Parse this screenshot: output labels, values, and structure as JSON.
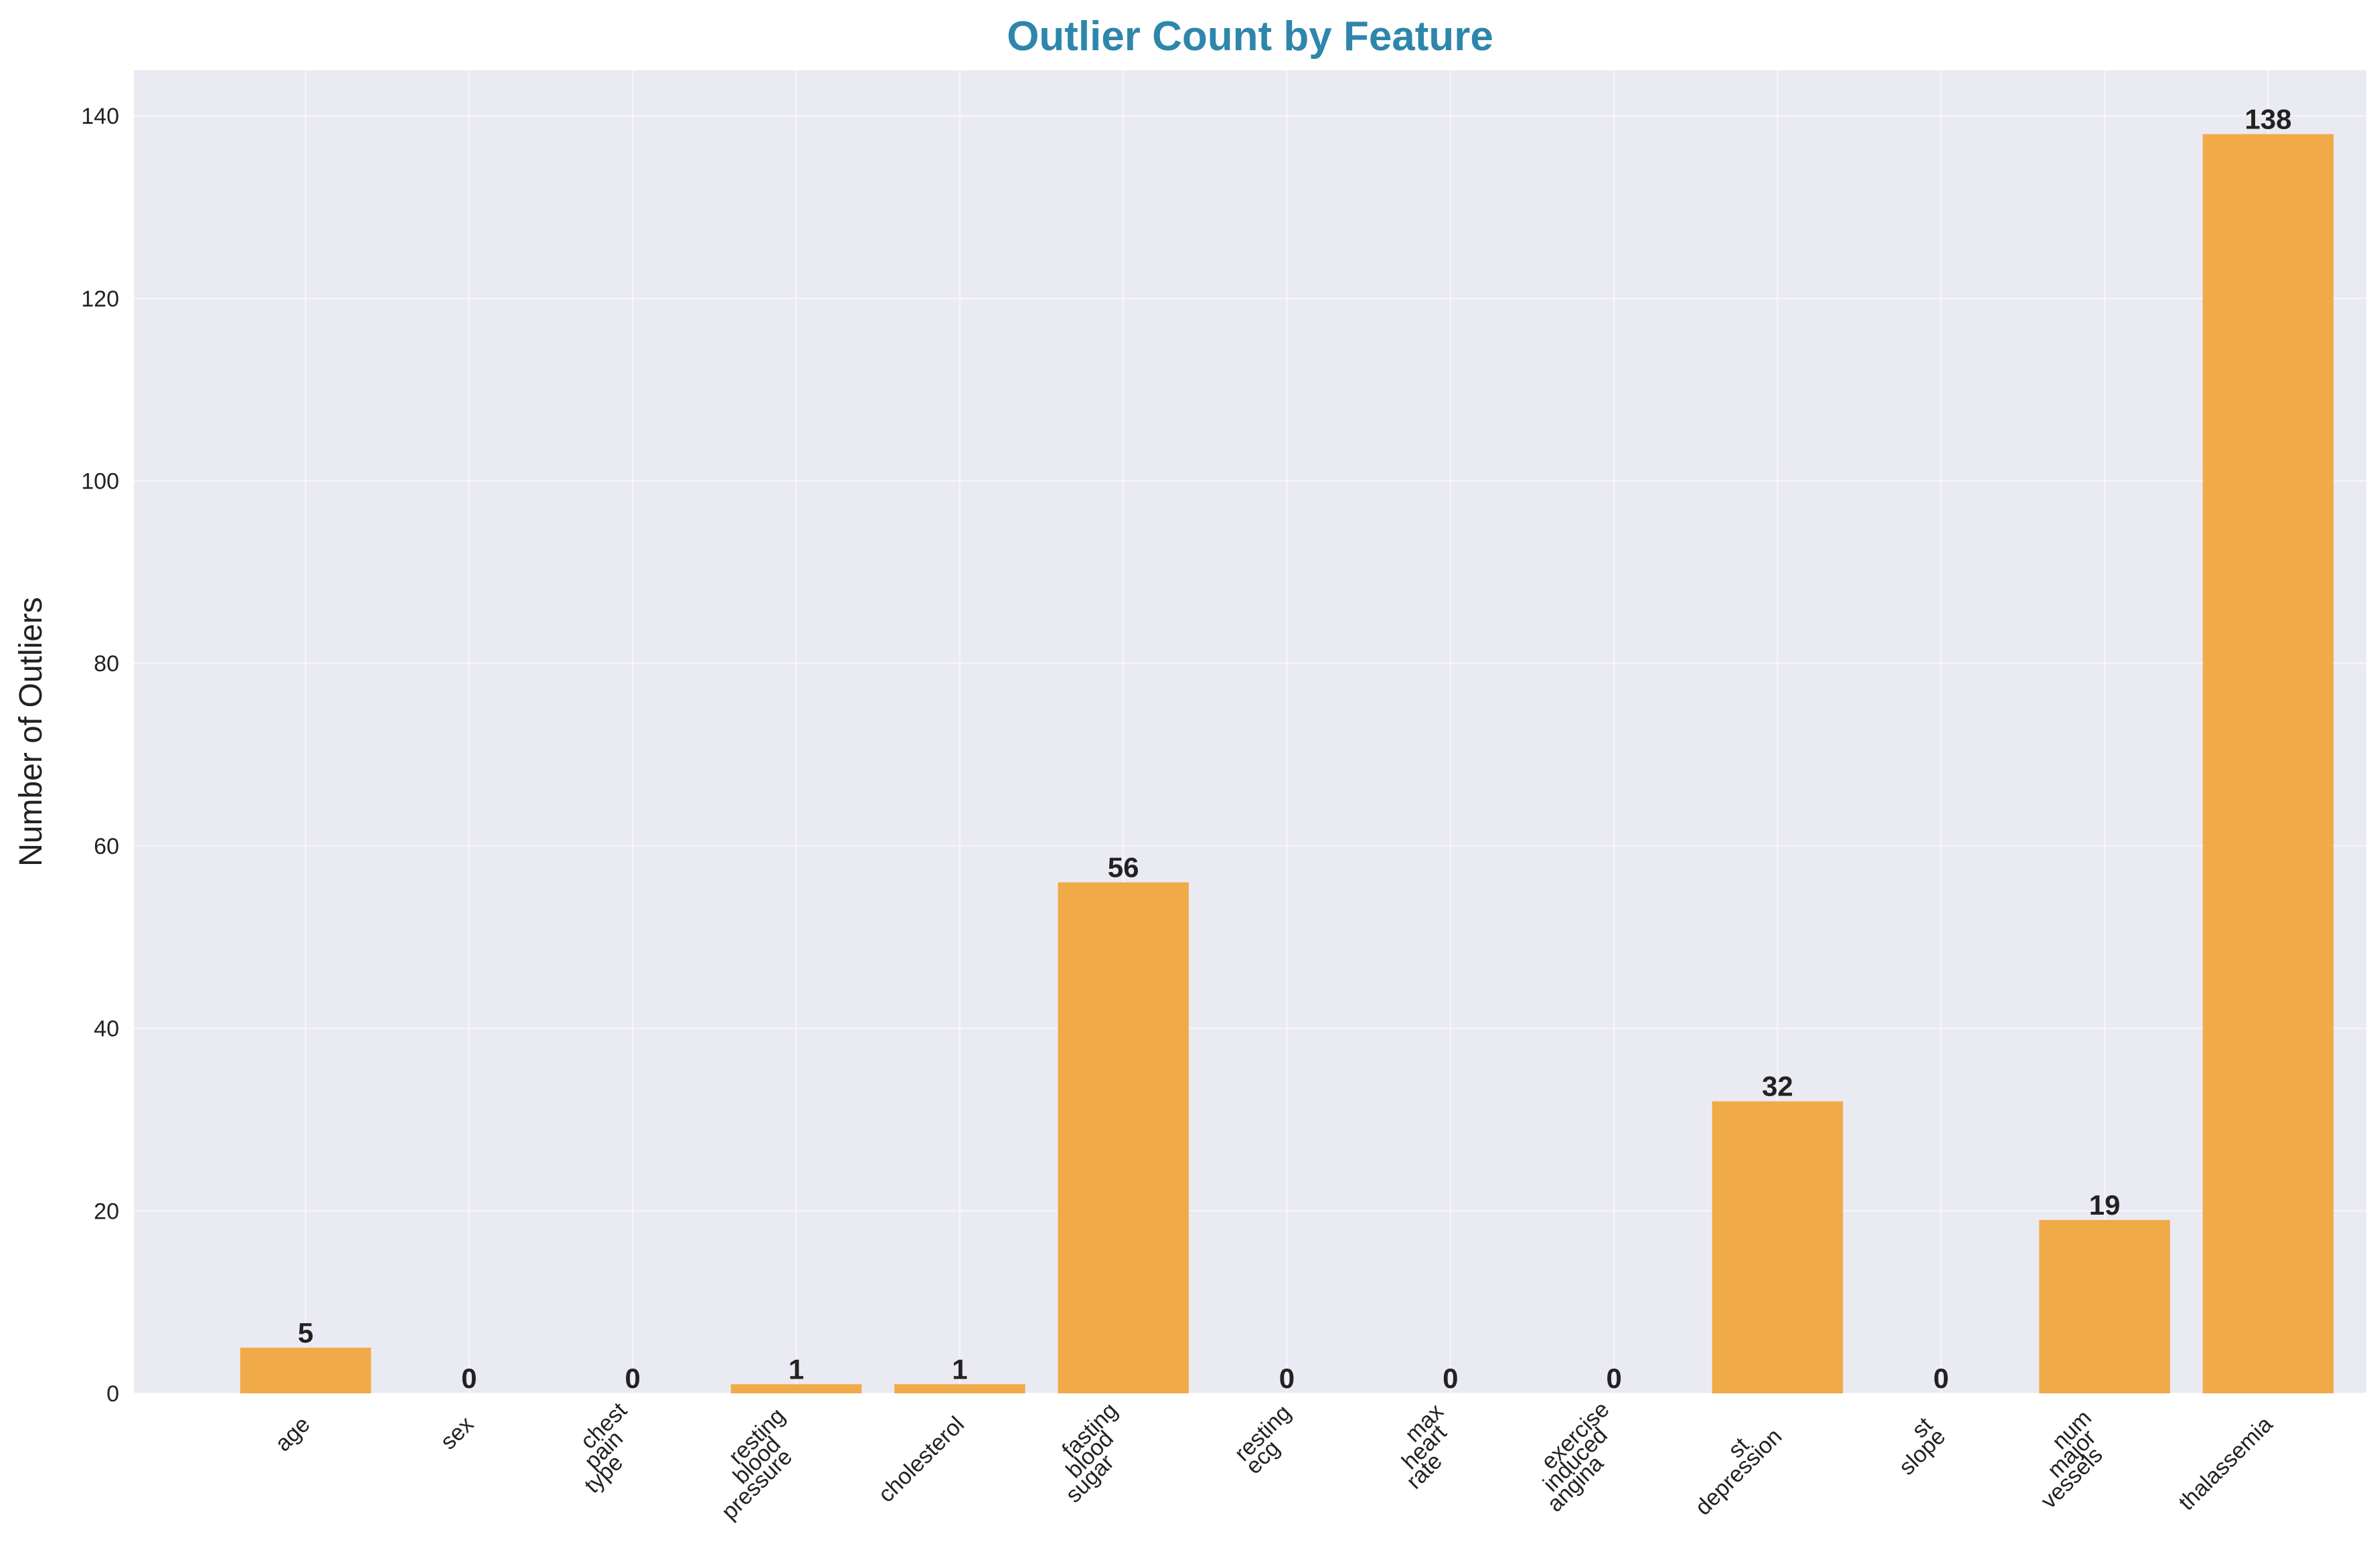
{
  "chart_data": {
    "type": "bar",
    "title": "Outlier Count by Feature",
    "xlabel": "",
    "ylabel": "Number of Outliers",
    "categories": [
      [
        "age"
      ],
      [
        "sex"
      ],
      [
        "chest",
        "pain",
        "type"
      ],
      [
        "resting",
        "blood",
        "pressure"
      ],
      [
        "cholesterol"
      ],
      [
        "fasting",
        "blood",
        "sugar"
      ],
      [
        "resting",
        "ecg"
      ],
      [
        "max",
        "heart",
        "rate"
      ],
      [
        "exercise",
        "induced",
        "angina"
      ],
      [
        "st",
        "depression"
      ],
      [
        "st",
        "slope"
      ],
      [
        "num",
        "major",
        "vessels"
      ],
      [
        "thalassemia"
      ]
    ],
    "values": [
      5,
      0,
      0,
      1,
      1,
      56,
      0,
      0,
      0,
      32,
      0,
      19,
      138
    ],
    "ylim": [
      0,
      145
    ],
    "yticks": [
      0,
      20,
      40,
      60,
      80,
      100,
      120,
      140
    ],
    "grid": true,
    "legend": "none",
    "colors": {
      "bar": "#F0A43A",
      "title": "#2E86AB",
      "background": "#EAEAF2",
      "grid": "#FFFFFF",
      "text": "#222222"
    }
  }
}
